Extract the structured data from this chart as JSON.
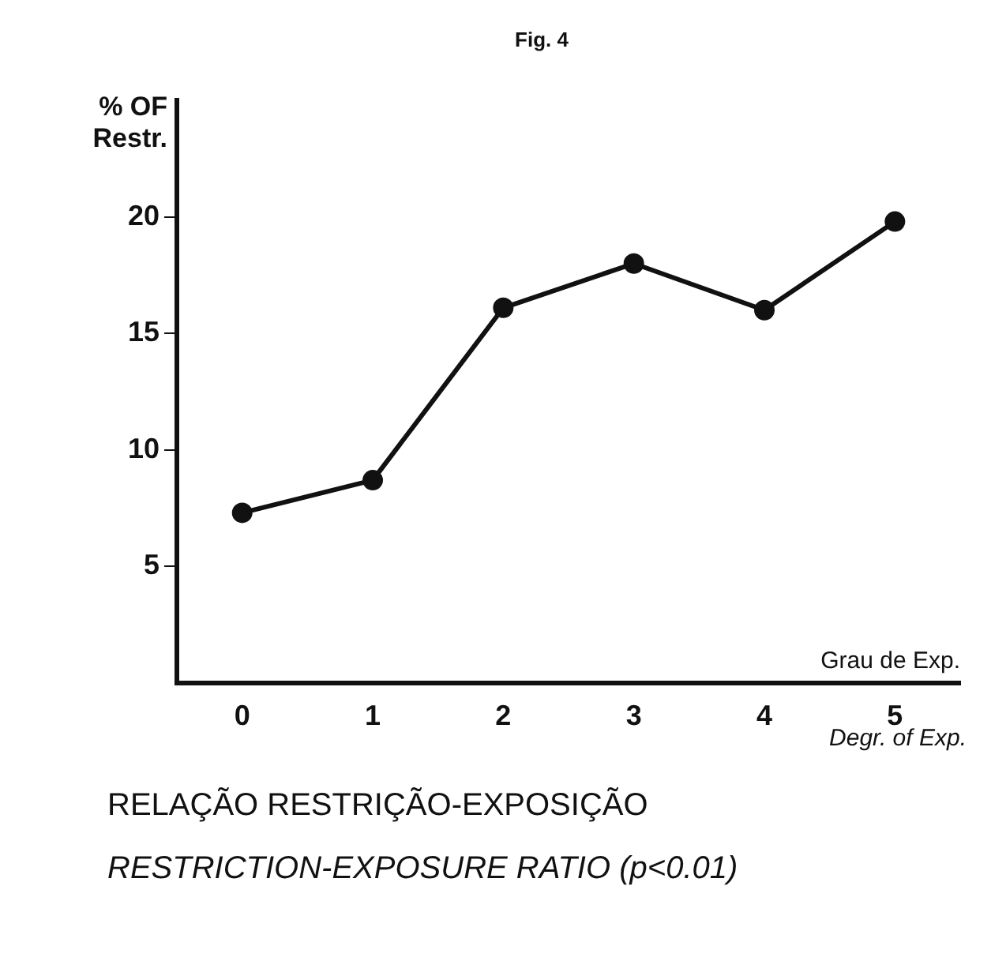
{
  "chart_data": {
    "type": "line",
    "title": "Fig. 4",
    "ylabel": "% OF Restr.",
    "xlabel": "Grau de Exp.",
    "x": [
      0,
      1,
      2,
      3,
      4,
      5
    ],
    "series": [
      {
        "color": "#111111",
        "values": [
          7.3,
          8.7,
          16.1,
          18,
          16,
          19.8
        ]
      }
    ],
    "xlim": [
      -0.5,
      5.5
    ],
    "xticks": [
      0,
      1,
      2,
      3,
      4,
      5
    ],
    "ylim": [
      0,
      25
    ],
    "yticks": [
      5,
      10,
      15,
      20
    ],
    "grid": false,
    "legend": false,
    "marker": "circle",
    "line_style": "solid",
    "annotations": [
      "Degr. of Exp.",
      "RELAÇÃO RESTRIÇÃO-EXPOSIÇÃO",
      "RESTRICTION-EXPOSURE RATIO (p<0.01)"
    ]
  }
}
